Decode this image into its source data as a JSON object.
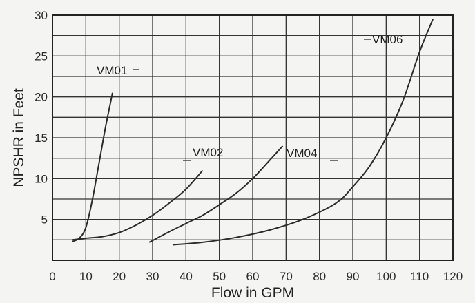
{
  "chart_data": {
    "type": "line",
    "title": "",
    "xlabel": "Flow in GPM",
    "ylabel": "NPSHR in Feet",
    "xlim": [
      0,
      120
    ],
    "ylim": [
      0,
      30
    ],
    "x_ticks": [
      0,
      10,
      20,
      30,
      40,
      50,
      60,
      70,
      80,
      90,
      100,
      110,
      120
    ],
    "y_ticks": [
      5,
      10,
      15,
      20,
      25,
      30
    ],
    "grid": true,
    "series": [
      {
        "name": "VM01",
        "x": [
          6,
          8,
          10,
          12,
          14,
          16,
          18
        ],
        "y": [
          2.3,
          2.7,
          4.0,
          7.5,
          12.0,
          16.5,
          20.5
        ]
      },
      {
        "name": "VM02",
        "x": [
          6,
          10,
          15,
          20,
          25,
          30,
          35,
          40,
          45
        ],
        "y": [
          2.5,
          2.7,
          2.9,
          3.4,
          4.3,
          5.5,
          7.0,
          8.7,
          11.0
        ]
      },
      {
        "name": "VM04",
        "x": [
          29,
          35,
          40,
          45,
          50,
          55,
          60,
          65,
          69
        ],
        "y": [
          2.2,
          3.5,
          4.5,
          5.5,
          6.8,
          8.2,
          10.0,
          12.2,
          14.0
        ]
      },
      {
        "name": "VM06",
        "x": [
          36,
          45,
          55,
          65,
          75,
          85,
          90,
          95,
          100,
          105,
          110,
          114
        ],
        "y": [
          1.9,
          2.2,
          2.8,
          3.7,
          5.0,
          7.0,
          9.0,
          11.5,
          15.0,
          19.5,
          25.5,
          29.5
        ]
      }
    ]
  }
}
